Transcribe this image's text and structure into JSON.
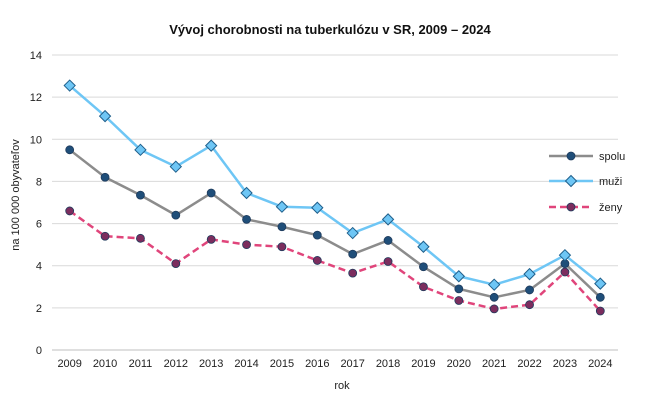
{
  "chart_data": {
    "type": "line",
    "title": "Vývoj chorobnosti na tuberkulózu v SR, 2009 – 2024",
    "xlabel": "rok",
    "ylabel": "na 100 000 obyvateľov",
    "ylim": [
      0,
      14
    ],
    "yticks": [
      "0",
      "2",
      "4",
      "6",
      "8",
      "10",
      "12",
      "14"
    ],
    "grid": "horizontal",
    "legend_position": "right",
    "categories": [
      "2009",
      "2010",
      "2011",
      "2012",
      "2013",
      "2014",
      "2015",
      "2016",
      "2017",
      "2018",
      "2019",
      "2020",
      "2021",
      "2022",
      "2023",
      "2024"
    ],
    "series": [
      {
        "name": "spolu",
        "color": "#8c8c8c",
        "marker": "circle",
        "marker_color": "#1f4e79",
        "dash": false,
        "values": [
          9.5,
          8.2,
          7.35,
          6.4,
          7.45,
          6.2,
          5.85,
          5.45,
          4.55,
          5.2,
          3.95,
          2.9,
          2.5,
          2.85,
          4.1,
          2.5
        ]
      },
      {
        "name": "muži",
        "color": "#6ec6f5",
        "marker": "diamond",
        "marker_color": "#6ec6f5",
        "dash": false,
        "values": [
          12.55,
          11.1,
          9.5,
          8.7,
          9.7,
          7.45,
          6.8,
          6.75,
          5.55,
          6.2,
          4.9,
          3.5,
          3.1,
          3.6,
          4.5,
          3.15
        ]
      },
      {
        "name": "ženy",
        "color": "#e0457b",
        "marker": "circle",
        "marker_color": "#7b2d5e",
        "dash": true,
        "values": [
          6.6,
          5.4,
          5.3,
          4.1,
          5.25,
          5.0,
          4.9,
          4.25,
          3.65,
          4.2,
          3.0,
          2.35,
          1.95,
          2.15,
          3.7,
          1.85
        ]
      }
    ]
  }
}
